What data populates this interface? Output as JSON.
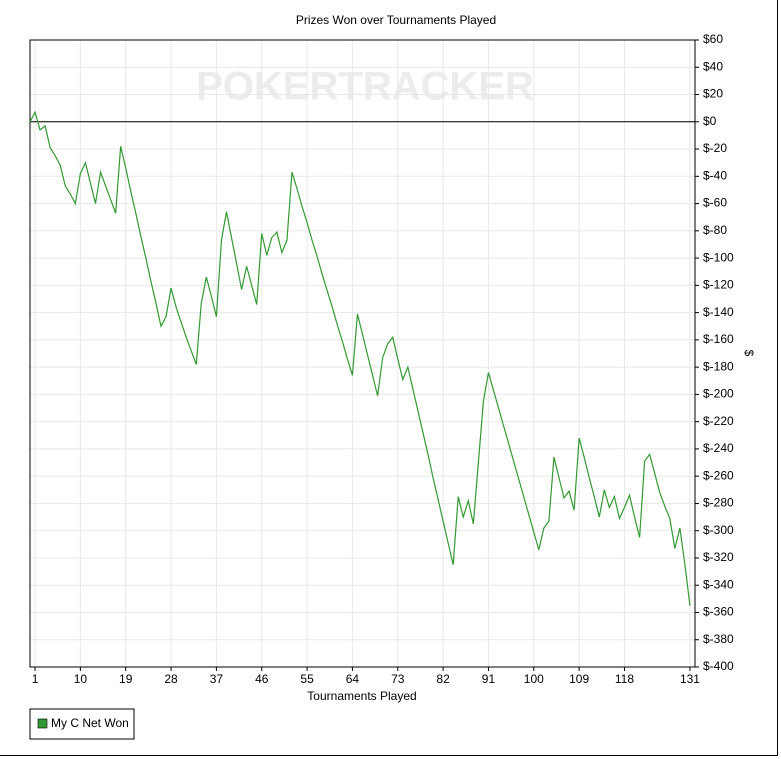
{
  "chart_data": {
    "type": "line",
    "title": "Prizes Won over Tournaments Played",
    "watermark": "POKERTRACKER",
    "xlabel": "Tournaments Played",
    "ylabel": "$",
    "x": [
      0,
      1,
      2,
      3,
      4,
      5,
      6,
      7,
      8,
      9,
      10,
      11,
      12,
      13,
      14,
      15,
      16,
      17,
      18,
      19,
      20,
      21,
      22,
      23,
      24,
      25,
      26,
      27,
      28,
      29,
      30,
      31,
      32,
      33,
      34,
      35,
      36,
      37,
      38,
      39,
      40,
      41,
      42,
      43,
      44,
      45,
      46,
      47,
      48,
      49,
      50,
      51,
      52,
      53,
      54,
      55,
      56,
      57,
      58,
      59,
      60,
      61,
      62,
      63,
      64,
      65,
      66,
      67,
      68,
      69,
      70,
      71,
      72,
      73,
      74,
      75,
      76,
      77,
      78,
      79,
      80,
      81,
      82,
      83,
      84,
      85,
      86,
      87,
      88,
      89,
      90,
      91,
      92,
      93,
      94,
      95,
      96,
      97,
      98,
      99,
      100,
      101,
      102,
      103,
      104,
      105,
      106,
      107,
      108,
      109,
      110,
      111,
      112,
      113,
      114,
      115,
      116,
      117,
      118,
      119,
      120,
      121,
      122,
      123,
      124,
      125,
      126,
      127,
      128,
      129,
      130,
      131
    ],
    "series": [
      {
        "name": "My C Net Won",
        "color": "#339933",
        "values": [
          0,
          7,
          -6,
          -3,
          -19,
          -25,
          -32,
          -47,
          -53,
          -60,
          -38,
          -30,
          -45,
          -60,
          -37,
          -47,
          -57,
          -67,
          -18,
          -34,
          -51,
          -67,
          -84,
          -100,
          -117,
          -133,
          -150,
          -143,
          -122,
          -136,
          -147,
          -158,
          -168,
          -178,
          -133,
          -114,
          -128,
          -143,
          -87,
          -66,
          -85,
          -104,
          -123,
          -106,
          -120,
          -134,
          -82,
          -98,
          -85,
          -81,
          -96,
          -87,
          -37,
          -49,
          -62,
          -74,
          -87,
          -99,
          -112,
          -124,
          -136,
          -149,
          -161,
          -174,
          -186,
          -141,
          -156,
          -171,
          -186,
          -201,
          -173,
          -163,
          -158,
          -174,
          -189,
          -180,
          -196,
          -212,
          -228,
          -244,
          -261,
          -277,
          -293,
          -309,
          -325,
          -275,
          -290,
          -278,
          -295,
          -250,
          -205,
          -184,
          -197,
          -210,
          -223,
          -236,
          -249,
          -262,
          -275,
          -288,
          -301,
          -314,
          -298,
          -293,
          -246,
          -261,
          -276,
          -271,
          -285,
          -232,
          -246,
          -261,
          -275,
          -290,
          -270,
          -283,
          -275,
          -291,
          -283,
          -274,
          -290,
          -305,
          -249,
          -244,
          -258,
          -272,
          -282,
          -291,
          -313,
          -298,
          -325,
          -355
        ]
      }
    ],
    "xlim": [
      0,
      132
    ],
    "xticks": [
      1,
      10,
      19,
      28,
      37,
      46,
      55,
      64,
      73,
      82,
      91,
      100,
      109,
      118,
      131
    ],
    "ylim": [
      -400,
      60
    ],
    "yticks": [
      {
        "value": 60,
        "label": "$60"
      },
      {
        "value": 40,
        "label": "$40"
      },
      {
        "value": 20,
        "label": "$20"
      },
      {
        "value": 0,
        "label": "$0"
      },
      {
        "value": -20,
        "label": "$-20"
      },
      {
        "value": -40,
        "label": "$-40"
      },
      {
        "value": -60,
        "label": "$-60"
      },
      {
        "value": -80,
        "label": "$-80"
      },
      {
        "value": -100,
        "label": "$-100"
      },
      {
        "value": -120,
        "label": "$-120"
      },
      {
        "value": -140,
        "label": "$-140"
      },
      {
        "value": -160,
        "label": "$-160"
      },
      {
        "value": -180,
        "label": "$-180"
      },
      {
        "value": -200,
        "label": "$-200"
      },
      {
        "value": -220,
        "label": "$-220"
      },
      {
        "value": -240,
        "label": "$-240"
      },
      {
        "value": -260,
        "label": "$-260"
      },
      {
        "value": -280,
        "label": "$-280"
      },
      {
        "value": -300,
        "label": "$-300"
      },
      {
        "value": -320,
        "label": "$-320"
      },
      {
        "value": -340,
        "label": "$-340"
      },
      {
        "value": -360,
        "label": "$-360"
      },
      {
        "value": -380,
        "label": "$-380"
      },
      {
        "value": -400,
        "label": "$-400"
      }
    ],
    "grid": true,
    "legend": "bottom-left"
  }
}
